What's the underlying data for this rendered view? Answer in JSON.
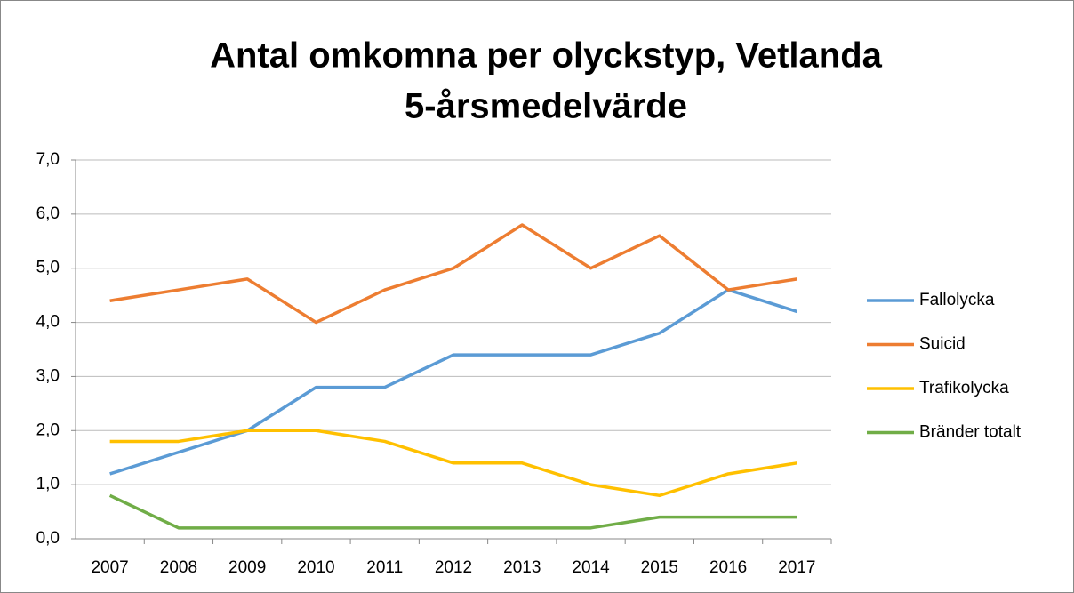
{
  "chart_data": {
    "type": "line",
    "title": [
      "Antal omkomna per olyckstyp, Vetlanda",
      "5-årsmedelvärde"
    ],
    "categories": [
      "2007",
      "2008",
      "2009",
      "2010",
      "2011",
      "2012",
      "2013",
      "2014",
      "2015",
      "2016",
      "2017"
    ],
    "series": [
      {
        "name": "Fallolycka",
        "color": "#5b9bd5",
        "values": [
          1.2,
          1.6,
          2.0,
          2.8,
          2.8,
          3.4,
          3.4,
          3.4,
          3.8,
          4.6,
          4.2
        ]
      },
      {
        "name": "Suicid",
        "color": "#ed7d31",
        "values": [
          4.4,
          4.6,
          4.8,
          4.0,
          4.6,
          5.0,
          5.8,
          5.0,
          5.6,
          4.6,
          4.8
        ]
      },
      {
        "name": "Trafikolycka",
        "color": "#ffc000",
        "values": [
          1.8,
          1.8,
          2.0,
          2.0,
          1.8,
          1.4,
          1.4,
          1.0,
          0.8,
          1.2,
          1.4
        ]
      },
      {
        "name": "Bränder totalt",
        "color": "#70ad47",
        "values": [
          0.8,
          0.2,
          0.2,
          0.2,
          0.2,
          0.2,
          0.2,
          0.2,
          0.4,
          0.4,
          0.4
        ]
      }
    ],
    "ylim": [
      0,
      7
    ],
    "yticks": [
      {
        "value": 0,
        "label": "0,0"
      },
      {
        "value": 1,
        "label": "1,0"
      },
      {
        "value": 2,
        "label": "2,0"
      },
      {
        "value": 3,
        "label": "3,0"
      },
      {
        "value": 4,
        "label": "4,0"
      },
      {
        "value": 5,
        "label": "5,0"
      },
      {
        "value": 6,
        "label": "6,0"
      },
      {
        "value": 7,
        "label": "7,0"
      }
    ],
    "grid": true,
    "legend": "right"
  }
}
